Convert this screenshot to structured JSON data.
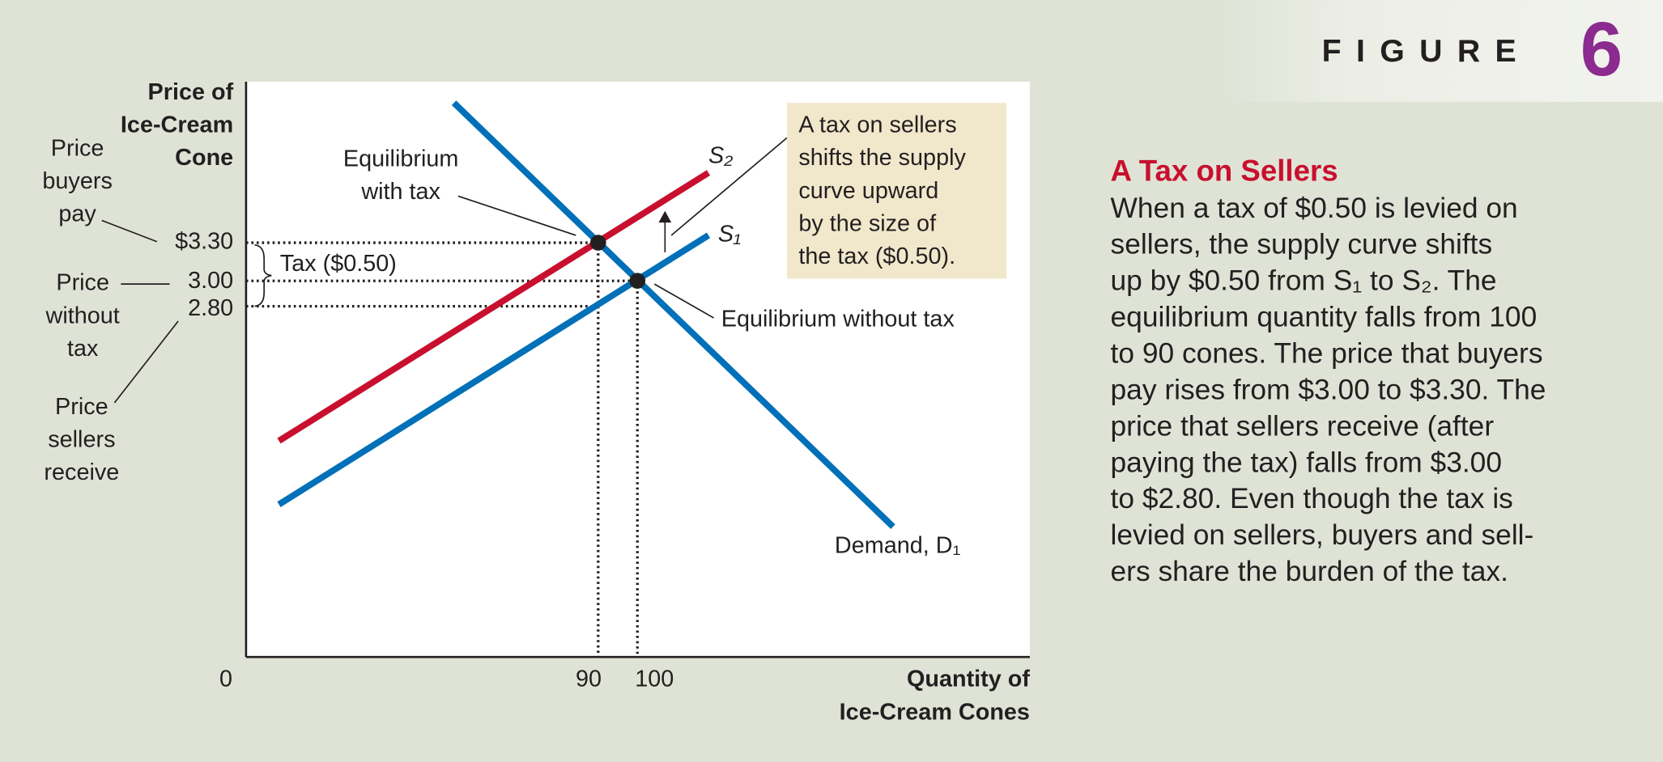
{
  "header": {
    "label": "FIGURE",
    "number": "6"
  },
  "diagram": {
    "y_axis_title": [
      "Price of",
      "Ice-Cream",
      "Cone"
    ],
    "x_axis_title": [
      "Quantity of",
      "Ice-Cream Cones"
    ],
    "origin": "0",
    "x_labels": [
      "90",
      "100"
    ],
    "y_labels": [
      "$3.30",
      "3.00",
      "2.80"
    ],
    "side_labels": {
      "buyers": [
        "Price",
        "buyers",
        "pay"
      ],
      "without": [
        "Price",
        "without",
        "tax"
      ],
      "sellers": [
        "Price",
        "sellers",
        "receive"
      ]
    },
    "tax_label": "Tax ($0.50)",
    "eq_with_tax": [
      "Equilibrium",
      "with tax"
    ],
    "eq_without_tax": "Equilibrium without tax",
    "s2": "S₂",
    "s1": "S₁",
    "demand": "Demand, D₁",
    "note": [
      "A tax on sellers",
      "shifts the supply",
      "curve upward",
      "by the size of",
      "the tax ($0.50)."
    ]
  },
  "caption": {
    "title": "A Tax on Sellers",
    "lines": [
      "When a tax of $0.50 is levied on",
      "sellers, the supply curve shifts",
      "up by $0.50 from S₁ to S₂. The",
      "equilibrium quantity falls from 100",
      "to 90 cones. The price that buyers",
      "pay rises from $3.00 to $3.30. The",
      "price that sellers receive (after",
      "paying the tax) falls from $3.00",
      "to $2.80. Even though the tax is",
      "levied on sellers, buyers and sell-",
      "ers share the burden of the tax."
    ]
  }
}
